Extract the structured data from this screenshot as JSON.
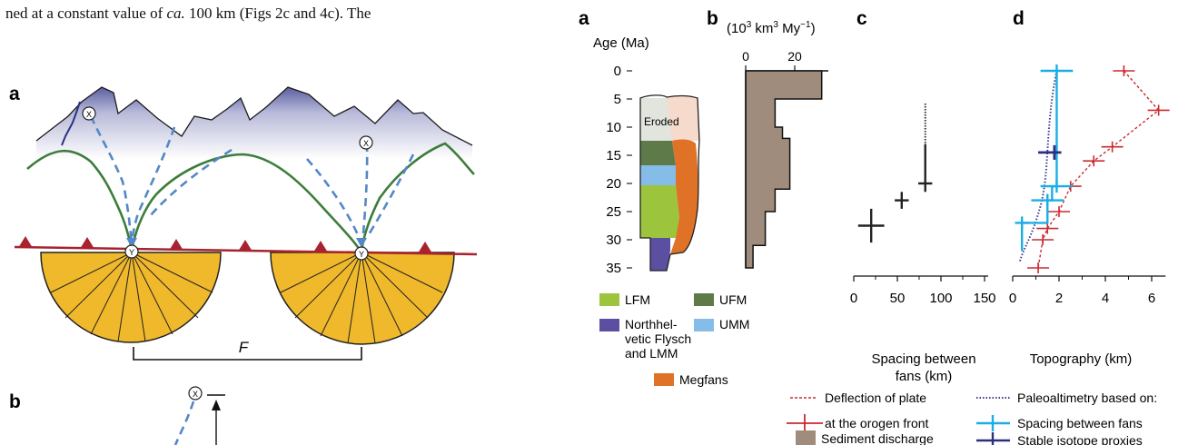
{
  "caption_line": {
    "before": "ned at a constant value of ",
    "italic": "ca.",
    "after": " 100 km (Figs 2c and 4c). The"
  },
  "left_figure": {
    "panel_a_label": "a",
    "panel_b_label": "b",
    "source_marker": "X",
    "fan_apex_marker": "Y",
    "spacing_label": "F"
  },
  "right_figure": {
    "panel_a": {
      "label": "a",
      "axis_title": "Age (Ma)",
      "ticks": [
        "0",
        "5",
        "10",
        "15",
        "20",
        "25",
        "30",
        "35"
      ],
      "eroded_label": "Eroded",
      "legend": {
        "lfm": "LFM",
        "ufm": "UFM",
        "nhf_line1": "Northhel-",
        "nhf_line2": "vetic Flysch",
        "nhf_line3": "and LMM",
        "umm": "UMM",
        "megfans": "Megfans"
      }
    },
    "panel_b": {
      "label": "b",
      "unit_open": "(10",
      "unit_exp1": "3",
      "unit_mid": " km",
      "unit_exp2": "3",
      "unit_mid2": " My",
      "unit_exp3": "−1",
      "unit_close": ")",
      "ticks": [
        "0",
        "20"
      ],
      "legend_sediment": "Sediment discharge"
    },
    "panel_c": {
      "label": "c",
      "ticks": [
        "0",
        "50",
        "100",
        "150"
      ],
      "xlabel_line1": "Spacing between",
      "xlabel_line2": "fans (km)"
    },
    "panel_d": {
      "label": "d",
      "ticks": [
        "0",
        "2",
        "4",
        "6"
      ],
      "xlabel": "Topography (km)"
    },
    "legend": {
      "deflection_line1": "Deflection of plate",
      "deflection_line2": "at the orogen front",
      "paleo_title": "Paleoaltimetry based on:",
      "paleo_spacing": "Spacing between fans",
      "paleo_isotope": "Stable isotope proxies"
    }
  },
  "colors": {
    "lfm": "#9dc43d",
    "ufm": "#5d7a48",
    "umm": "#86bce8",
    "nhf": "#5b4fa2",
    "megfans": "#e07228",
    "eroded_gray": "#e2e4de",
    "eroded_pink": "#f6dacb",
    "sediment": "#a08c7c",
    "deflection": "#cc2a2f",
    "paleo_dotted": "#3b3d8e",
    "spacing_fans": "#1aaee5",
    "isotope": "#2b3180",
    "fan_fill": "#f0b92c",
    "ridge_green": "#3d7d3a",
    "drainage_blue": "#5487c6"
  },
  "chart_data": [
    {
      "type": "area",
      "title": "",
      "ylabel": "Age (Ma)",
      "ylim": [
        0,
        35
      ],
      "series": [
        {
          "name": "Eroded",
          "y_range": [
            5,
            12
          ]
        },
        {
          "name": "UFM",
          "y_range": [
            12,
            16.5
          ]
        },
        {
          "name": "UMM",
          "y_range": [
            16.5,
            20
          ]
        },
        {
          "name": "LFM",
          "y_range": [
            20,
            29
          ]
        },
        {
          "name": "Northhel-vetic Flysch and LMM",
          "y_range": [
            29,
            35
          ]
        },
        {
          "name": "Megfans",
          "y_range": [
            12,
            33
          ]
        }
      ]
    },
    {
      "type": "bar",
      "title": "",
      "xlabel": "(10^3 km^3 My^-1)",
      "xlim": [
        0,
        40
      ],
      "ylim": [
        0,
        35
      ],
      "x": [
        31,
        12,
        15,
        18,
        18,
        12,
        8,
        3
      ],
      "y_top": [
        0,
        5,
        10,
        12,
        15,
        21,
        25,
        31
      ],
      "y_bottom": [
        5,
        10,
        12,
        15,
        21,
        25,
        31,
        35
      ],
      "legend": "Sediment discharge"
    },
    {
      "type": "scatter",
      "title": "",
      "xlabel": "Spacing between fans (km)",
      "xlim": [
        0,
        150
      ],
      "ylim": [
        0,
        35
      ],
      "x": [
        20,
        55,
        82
      ],
      "y": [
        27.5,
        23,
        20
      ],
      "x_err": [
        15,
        8,
        8
      ],
      "y_err": [
        3,
        1.5,
        7
      ]
    },
    {
      "type": "line",
      "title": "",
      "xlabel": "Topography (km)",
      "xlim": [
        0,
        7
      ],
      "ylim": [
        0,
        35
      ],
      "series": [
        {
          "name": "Deflection of plate at the orogen front",
          "x": [
            4.8,
            6.3,
            4.3,
            3.5,
            2.5,
            2.0,
            1.5,
            1.3,
            1.1
          ],
          "y": [
            0,
            7,
            13.5,
            16,
            20.5,
            25,
            28,
            30,
            35
          ]
        },
        {
          "name": "Spacing between fans",
          "x": [
            1.9,
            1.7,
            1.5,
            0.4,
            0.4
          ],
          "y": [
            0,
            20.5,
            23,
            27,
            32
          ]
        },
        {
          "name": "Stable isotope proxies",
          "x": [
            1.8
          ],
          "y": [
            14.5
          ]
        }
      ]
    }
  ]
}
